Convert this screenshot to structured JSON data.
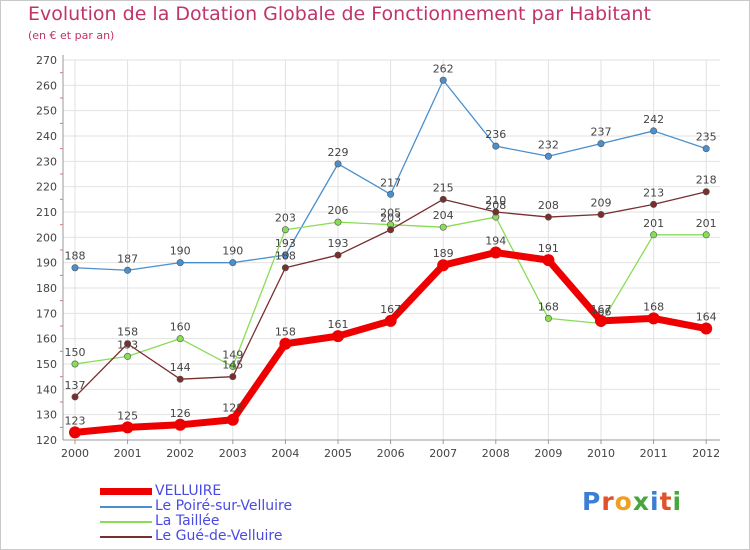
{
  "header": {
    "title": "Evolution de la Dotation Globale de Fonctionnement par Habitant",
    "subtitle": "(en € et par an)"
  },
  "logo": {
    "text": "Proxiti",
    "letters": [
      "P",
      "r",
      "o",
      "x",
      "i",
      "t",
      "i"
    ],
    "colors": [
      "#3b7fd4",
      "#e0522a",
      "#f0a020",
      "#46a83c",
      "#3b7fd4",
      "#e0522a",
      "#46a83c"
    ]
  },
  "chart_data": {
    "type": "line",
    "title": "Evolution de la Dotation Globale de Fonctionnement par Habitant",
    "subtitle": "(en € et par an)",
    "xlabel": "",
    "ylabel": "",
    "ylim": [
      120,
      270
    ],
    "yticks": [
      120,
      130,
      140,
      150,
      160,
      170,
      180,
      190,
      200,
      210,
      220,
      230,
      240,
      250,
      260,
      270
    ],
    "grid": true,
    "categories": [
      "2000",
      "2001",
      "2002",
      "2003",
      "2004",
      "2005",
      "2006",
      "2007",
      "2008",
      "2009",
      "2010",
      "2011",
      "2012"
    ],
    "series": [
      {
        "name": "Le Poiré-sur-Velluire",
        "color": "#4a8fce",
        "values": [
          188,
          187,
          190,
          190,
          193,
          229,
          217,
          262,
          236,
          232,
          237,
          242,
          235
        ],
        "labels": [
          "188",
          "187",
          "190",
          "190",
          "193",
          "229",
          "217",
          "262",
          "236",
          "232",
          "237",
          "242",
          "235"
        ]
      },
      {
        "name": "La Taillée",
        "color": "#88dd55",
        "values": [
          150,
          153,
          160,
          149,
          203,
          206,
          205,
          204,
          208,
          168,
          166,
          201,
          201
        ],
        "labels": [
          "150",
          "153",
          "160",
          "149",
          "203",
          "206",
          "205",
          "204",
          "208",
          "168",
          "166",
          "201",
          "201"
        ]
      },
      {
        "name": "Le Gué-de-Velluire",
        "color": "#7a2e2e",
        "values": [
          137,
          158,
          144,
          145,
          188,
          193,
          203,
          215,
          210,
          208,
          209,
          213,
          218
        ],
        "labels": [
          "137",
          "158",
          "144",
          "145",
          "188",
          "193",
          "203",
          "215",
          "210",
          "208",
          "209",
          "213",
          "218"
        ]
      },
      {
        "name": "VELLUIRE",
        "color": "#ee0000",
        "values": [
          123,
          125,
          126,
          128,
          158,
          161,
          167,
          189,
          194,
          191,
          167,
          168,
          164
        ],
        "labels": [
          "123",
          "125",
          "126",
          "128",
          "158",
          "161",
          "167",
          "189",
          "194",
          "191",
          "167",
          "168",
          "164"
        ]
      }
    ],
    "legend": [
      {
        "name": "VELLUIRE",
        "color": "#ee0000",
        "thick": true
      },
      {
        "name": "Le Poiré-sur-Velluire",
        "color": "#4a8fce",
        "thick": false
      },
      {
        "name": "La Taillée",
        "color": "#88dd55",
        "thick": false
      },
      {
        "name": "Le Gué-de-Velluire",
        "color": "#7a2e2e",
        "thick": false
      }
    ]
  }
}
